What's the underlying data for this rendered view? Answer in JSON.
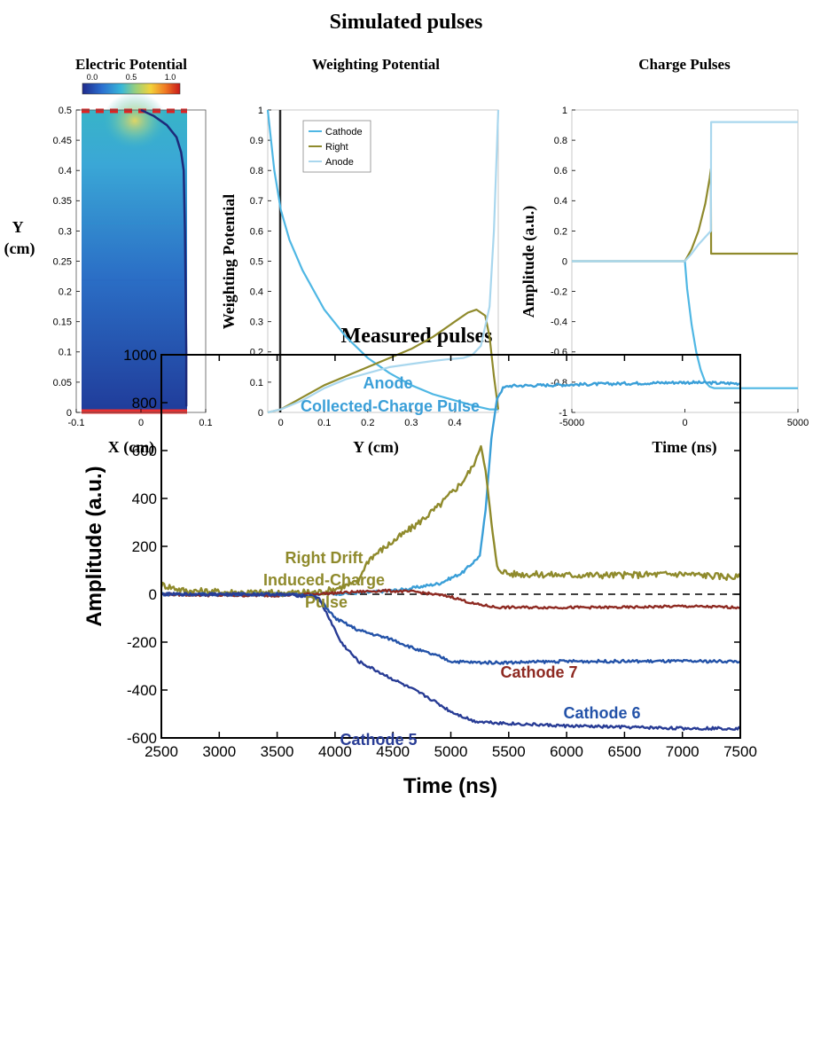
{
  "top_title": "Simulated pulses",
  "bottom_title": "Measured pulses",
  "colors": {
    "cathode": "#4fb7e4",
    "right": "#8f8a2c",
    "anode_sim": "#a9d7ee",
    "anode_meas": "#3a9fd8",
    "cathode5": "#283c95",
    "cathode6": "#2352a8",
    "cathode7": "#8e2a22",
    "axis": "#000000"
  },
  "chart_data": [
    {
      "type": "heatmap",
      "title": "Electric Potential",
      "xlabel": "X (cm)",
      "ylabel": "Y (cm)",
      "xlim": [
        -0.1,
        0.1
      ],
      "ylim": [
        0,
        0.5
      ],
      "xticks": [
        "-0.1",
        "0",
        "0.1"
      ],
      "yticks": [
        "0",
        "0.05",
        "0.1",
        "0.15",
        "0.2",
        "0.25",
        "0.3",
        "0.35",
        "0.4",
        "0.45",
        "0.5"
      ],
      "colorbar": {
        "min": 0.0,
        "max": 1.0,
        "ticks": [
          "0.0",
          "0.5",
          "1.0"
        ]
      },
      "trajectory": {
        "x": [
          0.0,
          0.02,
          0.04,
          0.055,
          0.062,
          0.066,
          0.068,
          0.069,
          0.07,
          0.07
        ],
        "y": [
          0.5,
          0.49,
          0.475,
          0.455,
          0.43,
          0.4,
          0.3,
          0.2,
          0.1,
          0.01
        ]
      }
    },
    {
      "type": "line",
      "title": "Weighting Potential",
      "xlabel": "Y (cm)",
      "ylabel": "Weighting Potential",
      "xlim": [
        -0.03,
        0.5
      ],
      "ylim": [
        0,
        1
      ],
      "xticks": [
        "0",
        "0.1",
        "0.2",
        "0.3",
        "0.4"
      ],
      "yticks": [
        "0",
        "0.1",
        "0.2",
        "0.3",
        "0.4",
        "0.5",
        "0.6",
        "0.7",
        "0.8",
        "0.9",
        "1"
      ],
      "legend": "top-left",
      "series": [
        {
          "name": "Cathode",
          "x": [
            -0.03,
            -0.015,
            0,
            0.02,
            0.05,
            0.1,
            0.15,
            0.2,
            0.25,
            0.3,
            0.35,
            0.4,
            0.45,
            0.48,
            0.5
          ],
          "y": [
            1,
            0.8,
            0.67,
            0.57,
            0.47,
            0.34,
            0.25,
            0.18,
            0.13,
            0.09,
            0.06,
            0.04,
            0.02,
            0.01,
            0.01
          ]
        },
        {
          "name": "Right",
          "x": [
            -0.03,
            0,
            0.05,
            0.1,
            0.15,
            0.2,
            0.25,
            0.3,
            0.35,
            0.4,
            0.43,
            0.45,
            0.47,
            0.48,
            0.49,
            0.5
          ],
          "y": [
            0,
            0.01,
            0.05,
            0.09,
            0.12,
            0.15,
            0.18,
            0.21,
            0.25,
            0.3,
            0.33,
            0.34,
            0.32,
            0.25,
            0.12,
            0.01
          ]
        },
        {
          "name": "Anode",
          "x": [
            -0.03,
            0,
            0.05,
            0.1,
            0.15,
            0.2,
            0.25,
            0.3,
            0.35,
            0.38,
            0.42,
            0.44,
            0.46,
            0.48,
            0.49,
            0.5
          ],
          "y": [
            0,
            0.01,
            0.04,
            0.08,
            0.11,
            0.13,
            0.15,
            0.16,
            0.17,
            0.175,
            0.18,
            0.19,
            0.22,
            0.35,
            0.6,
            1
          ]
        }
      ]
    },
    {
      "type": "line",
      "title": "Charge Pulses",
      "xlabel": "Time (ns)",
      "ylabel": "Amplitude (a.u.)",
      "xlim": [
        -5000,
        5000
      ],
      "ylim": [
        -1,
        1
      ],
      "xticks": [
        "-5000",
        "0",
        "5000"
      ],
      "yticks": [
        "-1",
        "-0.8",
        "-0.6",
        "-0.4",
        "-0.2",
        "0",
        "0.2",
        "0.4",
        "0.6",
        "0.8",
        "1"
      ],
      "series": [
        {
          "name": "Cathode",
          "x": [
            -5000,
            0,
            100,
            300,
            500,
            700,
            900,
            1100,
            1300,
            5000
          ],
          "y": [
            0,
            0,
            -0.18,
            -0.42,
            -0.6,
            -0.72,
            -0.8,
            -0.83,
            -0.84,
            -0.84
          ]
        },
        {
          "name": "Right",
          "x": [
            -5000,
            0,
            300,
            600,
            900,
            1100,
            1150,
            1160,
            5000
          ],
          "y": [
            0,
            0,
            0.08,
            0.2,
            0.38,
            0.55,
            0.61,
            0.05,
            0.05
          ]
        },
        {
          "name": "Anode",
          "x": [
            -5000,
            0,
            300,
            600,
            900,
            1150,
            1160,
            5000
          ],
          "y": [
            0,
            0,
            0.05,
            0.11,
            0.16,
            0.2,
            0.92,
            0.92
          ]
        }
      ]
    },
    {
      "type": "line",
      "title": "Measured pulses",
      "xlabel": "Time (ns)",
      "ylabel": "Amplitude (a.u.)",
      "xlim": [
        2500,
        7500
      ],
      "ylim": [
        -600,
        1000
      ],
      "xticks": [
        "2500",
        "3000",
        "3500",
        "4000",
        "4500",
        "5000",
        "5500",
        "6000",
        "6500",
        "7000",
        "7500"
      ],
      "yticks": [
        "-600",
        "-400",
        "-200",
        "0",
        "200",
        "400",
        "600",
        "800",
        "1000"
      ],
      "series": [
        {
          "name": "Anode Collected-Charge Pulse",
          "x": [
            2500,
            3500,
            4000,
            4300,
            4600,
            4900,
            5100,
            5250,
            5300,
            5350,
            5400,
            5450,
            5500,
            6000,
            6500,
            7000,
            7500
          ],
          "y": [
            0,
            0,
            2,
            8,
            20,
            45,
            90,
            160,
            350,
            650,
            820,
            860,
            870,
            875,
            880,
            885,
            880
          ]
        },
        {
          "name": "Right Drift Induced-Charge Pulse",
          "x": [
            2500,
            2700,
            3000,
            3500,
            3900,
            4200,
            4250,
            4300,
            4500,
            4700,
            4900,
            5100,
            5200,
            5260,
            5300,
            5350,
            5400,
            5500,
            6000,
            6500,
            7000,
            7500
          ],
          "y": [
            40,
            15,
            10,
            5,
            10,
            50,
            110,
            150,
            220,
            290,
            370,
            470,
            540,
            620,
            520,
            300,
            110,
            85,
            80,
            80,
            85,
            70
          ]
        },
        {
          "name": "Cathode 7",
          "x": [
            2500,
            3000,
            3500,
            4000,
            4400,
            4700,
            5000,
            5200,
            5400,
            6000,
            6500,
            7000,
            7500
          ],
          "y": [
            0,
            -5,
            -5,
            5,
            15,
            10,
            -10,
            -40,
            -55,
            -55,
            -55,
            -50,
            -55
          ]
        },
        {
          "name": "Cathode 6",
          "x": [
            2500,
            3000,
            3500,
            3800,
            3900,
            4000,
            4200,
            4500,
            4700,
            4900,
            5000,
            5200,
            5500,
            6000,
            6500,
            7000,
            7500
          ],
          "y": [
            0,
            0,
            0,
            -5,
            -40,
            -100,
            -150,
            -190,
            -230,
            -260,
            -280,
            -285,
            -285,
            -280,
            -280,
            -280,
            -280
          ]
        },
        {
          "name": "Cathode 5",
          "x": [
            2500,
            3000,
            3500,
            3850,
            3950,
            4050,
            4200,
            4400,
            4600,
            4800,
            5000,
            5200,
            5500,
            6000,
            6500,
            7000,
            7500
          ],
          "y": [
            0,
            0,
            0,
            -10,
            -100,
            -200,
            -280,
            -330,
            -380,
            -430,
            -490,
            -530,
            -540,
            -550,
            -555,
            -560,
            -560
          ]
        }
      ],
      "zero_line": {
        "y": 0,
        "style": "dashed"
      },
      "annotations": [
        {
          "text_lines": [
            "Anode",
            "Collected-Charge Pulse"
          ]
        },
        {
          "text_lines": [
            "Right Drift",
            "Induced-Charge",
            "Pulse"
          ]
        },
        {
          "text_lines": [
            "Cathode 7"
          ]
        },
        {
          "text_lines": [
            "Cathode 6"
          ]
        },
        {
          "text_lines": [
            "Cathode 5"
          ]
        }
      ]
    }
  ]
}
